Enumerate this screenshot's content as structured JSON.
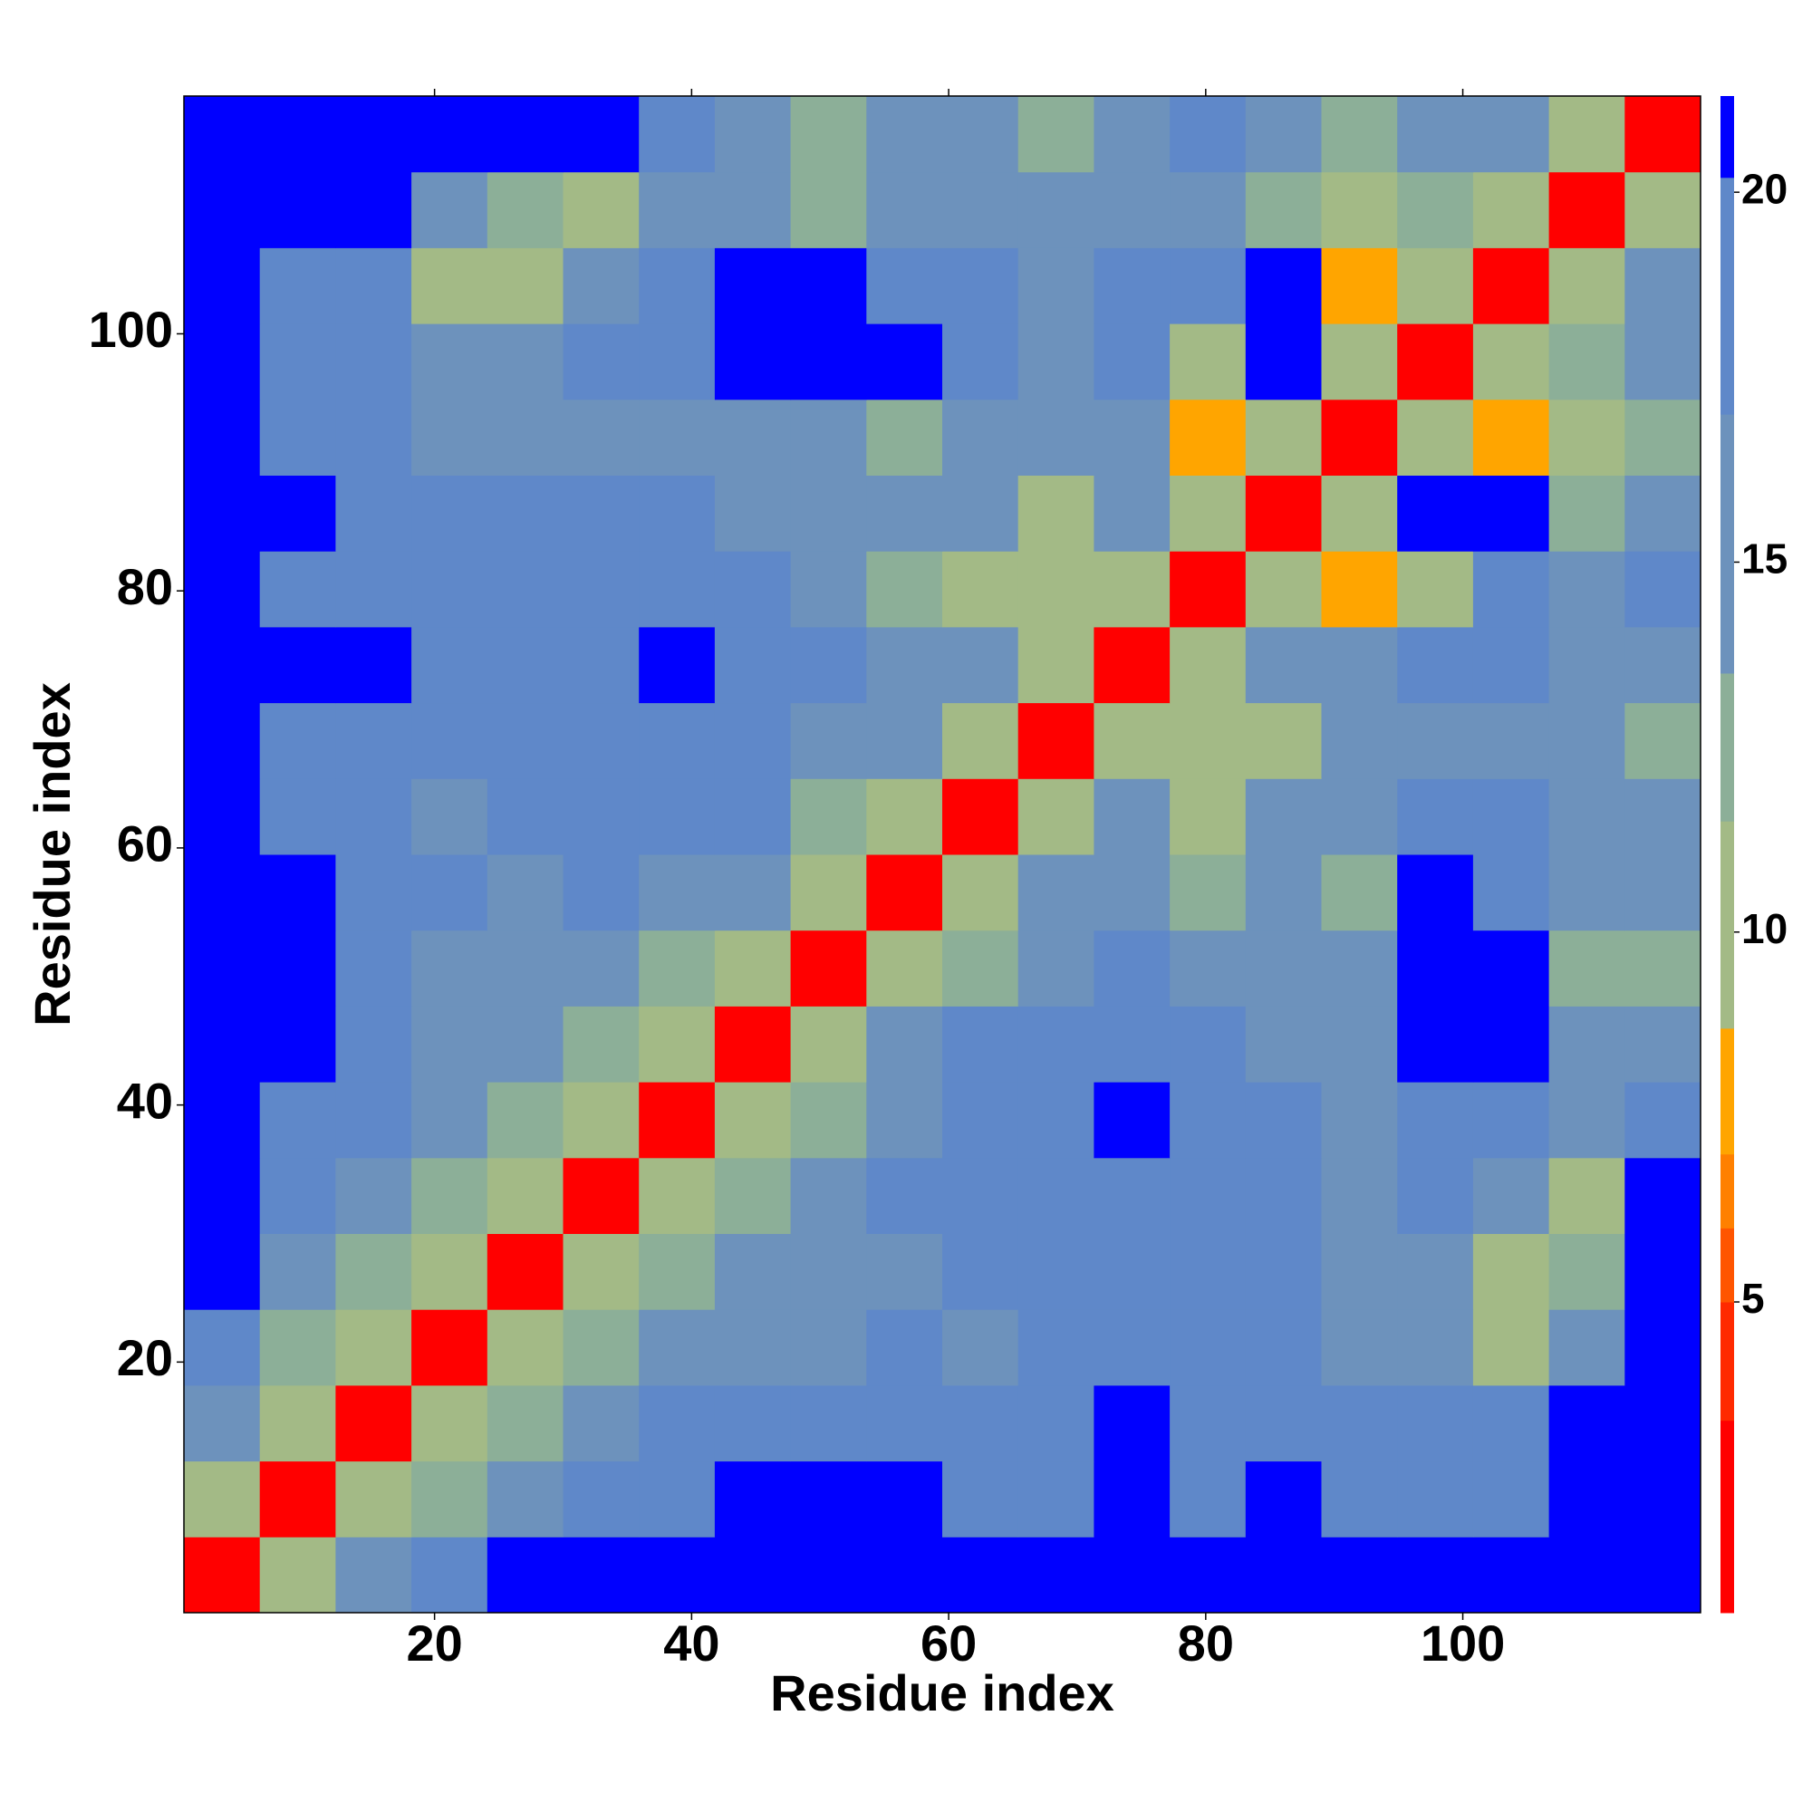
{
  "chart_data": {
    "type": "heatmap",
    "x_label": "Residue index",
    "y_label": "Residue index",
    "xbins": [
      0.5,
      6.4,
      12.3,
      18.2,
      24.1,
      30,
      35.9,
      41.8,
      47.7,
      53.6,
      59.5,
      65.4,
      71.3,
      77.2,
      83.1,
      89,
      94.9,
      100.8,
      106.7,
      112.6,
      118.5
    ],
    "ybins": [
      0.5,
      6.4,
      12.3,
      18.2,
      24.1,
      30,
      35.9,
      41.8,
      47.7,
      53.6,
      59.5,
      65.4,
      71.3,
      77.2,
      83.1,
      89,
      94.9,
      100.8,
      106.7,
      112.6,
      118.5
    ],
    "xlim": [
      0.5,
      118.5
    ],
    "ylim": [
      0.5,
      118.5
    ],
    "xticks": [
      20,
      40,
      60,
      80,
      100
    ],
    "yticks": [
      20,
      40,
      60,
      80,
      100
    ],
    "zlim": [
      0.8,
      21.3
    ],
    "zticks": [
      5,
      10,
      15,
      20
    ],
    "colorscale": [
      [
        0.8,
        "#ff0000"
      ],
      [
        3.4,
        "#ff2a00"
      ],
      [
        5,
        "#ff5500"
      ],
      [
        6,
        "#ff8000"
      ],
      [
        7,
        "#ffa500"
      ],
      [
        8.7,
        "#a3ba86"
      ],
      [
        11.5,
        "#8caf98"
      ],
      [
        13.5,
        "#6d92bc"
      ],
      [
        17,
        "#5f88c9"
      ],
      [
        20.2,
        "#0000ff"
      ]
    ],
    "z": [
      [
        3,
        9,
        14,
        17,
        21,
        21,
        21,
        21,
        21,
        21,
        21,
        21,
        21,
        21,
        21,
        21,
        21,
        21,
        21,
        21
      ],
      [
        9,
        3,
        9,
        13,
        16,
        19,
        19,
        21,
        21,
        21,
        19,
        19,
        21,
        18,
        21,
        19,
        19,
        20,
        21,
        21
      ],
      [
        14,
        9,
        3,
        9,
        13,
        15,
        17,
        18,
        19,
        19,
        17,
        17,
        21,
        19,
        19,
        18,
        17,
        17,
        21,
        21
      ],
      [
        17,
        13,
        9,
        3,
        9,
        12,
        15,
        16,
        15,
        17,
        16,
        17,
        19,
        18,
        18,
        16,
        14,
        9,
        16,
        21
      ],
      [
        21,
        16,
        13,
        9,
        3,
        9,
        12,
        14,
        15,
        15,
        17,
        18,
        19,
        17,
        17,
        15,
        14,
        11,
        12,
        21
      ],
      [
        21,
        19,
        15,
        12,
        9,
        3,
        9,
        12,
        14,
        18,
        17,
        18,
        20,
        17,
        18,
        16,
        17,
        14,
        11,
        21
      ],
      [
        21,
        19,
        17,
        15,
        12,
        9,
        3,
        9,
        12,
        16,
        18,
        19,
        21,
        18,
        17,
        15,
        19,
        17,
        15,
        18
      ],
      [
        21,
        21,
        18,
        16,
        14,
        12,
        9,
        3,
        9,
        14,
        17,
        19,
        20,
        19,
        16,
        14,
        21,
        21,
        14,
        15
      ],
      [
        21,
        21,
        19,
        15,
        15,
        14,
        12,
        9,
        3,
        9,
        13,
        15,
        17,
        16,
        15,
        14,
        21,
        21,
        12,
        12
      ],
      [
        21,
        21,
        19,
        17,
        15,
        18,
        16,
        14,
        9,
        3,
        9,
        15,
        16,
        13,
        15,
        13,
        21,
        20,
        15,
        14
      ],
      [
        21,
        19,
        17,
        16,
        17,
        17,
        18,
        17,
        13,
        9,
        3,
        9,
        16,
        11,
        14,
        14,
        18,
        17,
        14,
        14
      ],
      [
        21,
        19,
        17,
        17,
        18,
        18,
        19,
        19,
        15,
        15,
        9,
        3,
        9,
        10,
        9,
        15,
        16,
        16,
        15,
        12
      ],
      [
        21,
        21,
        21,
        19,
        19,
        20,
        21,
        20,
        17,
        16,
        16,
        9,
        3,
        9,
        14,
        16,
        17,
        17,
        14,
        15
      ],
      [
        21,
        18,
        19,
        18,
        17,
        17,
        18,
        19,
        16,
        13,
        11,
        10,
        9,
        3,
        9,
        8,
        9,
        17,
        15,
        17
      ],
      [
        21,
        21,
        19,
        18,
        17,
        18,
        17,
        16,
        15,
        15,
        14,
        9,
        14,
        9,
        3,
        9,
        21,
        21,
        13,
        14
      ],
      [
        21,
        19,
        18,
        16,
        15,
        16,
        15,
        14,
        14,
        13,
        14,
        15,
        16,
        8,
        9,
        3,
        9,
        8,
        10,
        12
      ],
      [
        21,
        19,
        17,
        14,
        14,
        17,
        19,
        21,
        21,
        21,
        18,
        16,
        17,
        9,
        21,
        9,
        3,
        9,
        12,
        16
      ],
      [
        21,
        20,
        17,
        9,
        11,
        14,
        17,
        21,
        21,
        20,
        17,
        16,
        17,
        17,
        21,
        8,
        9,
        3,
        9,
        15
      ],
      [
        21,
        21,
        21,
        16,
        12,
        11,
        15,
        14,
        12,
        15,
        14,
        15,
        14,
        15,
        13,
        10,
        12,
        9,
        3,
        9
      ],
      [
        21,
        21,
        21,
        21,
        21,
        21,
        18,
        15,
        12,
        14,
        14,
        12,
        15,
        17,
        14,
        12,
        16,
        15,
        9,
        3
      ]
    ]
  }
}
